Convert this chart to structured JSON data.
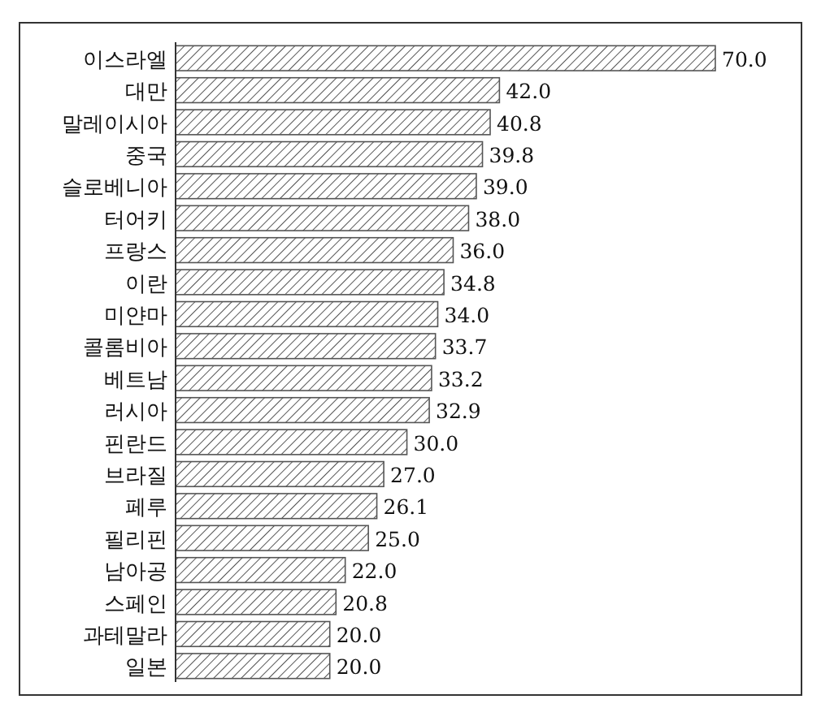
{
  "chart_data": {
    "type": "bar",
    "orientation": "horizontal",
    "categories": [
      "이스라엘",
      "대만",
      "말레이시아",
      "중국",
      "슬로베니아",
      "터어키",
      "프랑스",
      "이란",
      "미얀마",
      "콜롬비아",
      "베트남",
      "러시아",
      "핀란드",
      "브라질",
      "페루",
      "필리핀",
      "남아공",
      "스페인",
      "과테말라",
      "일본"
    ],
    "values": [
      70.0,
      42.0,
      40.8,
      39.8,
      39.0,
      38.0,
      36.0,
      34.8,
      34.0,
      33.7,
      33.2,
      32.9,
      30.0,
      27.0,
      26.1,
      25.0,
      22.0,
      20.8,
      20.0,
      20.0
    ],
    "value_labels": [
      "70.0",
      "42.0",
      "40.8",
      "39.8",
      "39.0",
      "38.0",
      "36.0",
      "34.8",
      "34.0",
      "33.7",
      "33.2",
      "32.9",
      "30.0",
      "27.0",
      "26.1",
      "25.0",
      "22.0",
      "20.8",
      "20.0",
      "20.0"
    ],
    "color": "#555555"
  }
}
